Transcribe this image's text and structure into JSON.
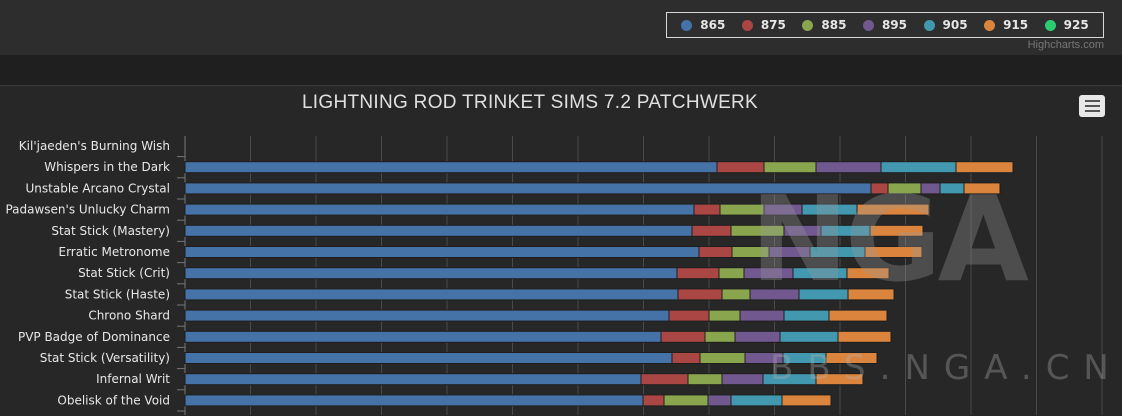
{
  "credits": "Highcharts.com",
  "chart_data": {
    "type": "bar",
    "stacked": true,
    "orientation": "horizontal",
    "title": "LIGHTNING ROD TRINKET SIMS 7.2 PATCHWERK",
    "legend_position": "top-right",
    "grid": true,
    "categories": [
      "Kil'jaeden's Burning Wish",
      "Whispers in the Dark",
      "Unstable Arcano Crystal",
      "Padawsen's Unlucky Charm",
      "Stat Stick (Mastery)",
      "Erratic Metronome",
      "Stat Stick (Crit)",
      "Stat Stick (Haste)",
      "Chrono Shard",
      "PVP Badge of Dominance",
      "Stat Stick (Versatility)",
      "Infernal Writ",
      "Obelisk of the Void"
    ],
    "series": [
      {
        "name": "865",
        "color": "#4572a7",
        "values": [
          null,
          532,
          686,
          509,
          507,
          514,
          492,
          493,
          484,
          476,
          487,
          456,
          458
        ]
      },
      {
        "name": "875",
        "color": "#aa4643",
        "values": [
          null,
          47,
          17,
          26,
          39,
          33,
          42,
          44,
          40,
          44,
          28,
          47,
          21
        ]
      },
      {
        "name": "885",
        "color": "#89a54e",
        "values": [
          null,
          52,
          33,
          44,
          53,
          37,
          25,
          28,
          31,
          30,
          45,
          34,
          44
        ]
      },
      {
        "name": "895",
        "color": "#71588f",
        "values": [
          null,
          65,
          19,
          38,
          37,
          41,
          49,
          49,
          44,
          45,
          38,
          41,
          23
        ]
      },
      {
        "name": "905",
        "color": "#4198af",
        "values": [
          null,
          75,
          24,
          55,
          49,
          55,
          54,
          49,
          45,
          58,
          43,
          53,
          51
        ]
      },
      {
        "name": "915",
        "color": "#db843d",
        "values": [
          null,
          57,
          36,
          72,
          53,
          57,
          42,
          46,
          58,
          53,
          51,
          47,
          49
        ]
      },
      {
        "name": "925",
        "color": "#2ecc71",
        "values": [
          null,
          null,
          null,
          null,
          null,
          null,
          null,
          null,
          null,
          null,
          null,
          null,
          null
        ]
      }
    ]
  },
  "watermark": {
    "big": "NGA",
    "small": "BBS.NGA.CN"
  }
}
